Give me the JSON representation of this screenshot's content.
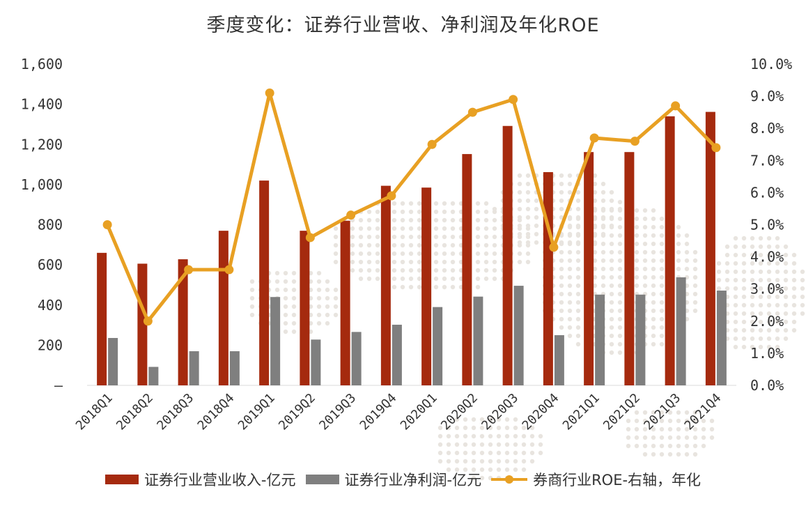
{
  "title": "季度变化：证券行业营收、净利润及年化ROE",
  "colors": {
    "revenue": "#A52A0E",
    "profit": "#7F7F7F",
    "roe": "#E8A023",
    "watermark": "#E8E4DF"
  },
  "legend": {
    "revenue": "证券行业营业收入-亿元",
    "profit": "证券行业净利润-亿元",
    "roe": "券商行业ROE-右轴，年化"
  },
  "chart_data": {
    "type": "bar",
    "categories": [
      "2018Q1",
      "2018Q2",
      "2018Q3",
      "2018Q4",
      "2019Q1",
      "2019Q2",
      "2019Q3",
      "2019Q4",
      "2020Q1",
      "2020Q2",
      "2020Q3",
      "2020Q4",
      "2021Q1",
      "2021Q2",
      "2021Q3",
      "2021Q4"
    ],
    "series": [
      {
        "name": "证券行业营业收入-亿元",
        "type": "bar",
        "axis": "left",
        "values": [
          660,
          606,
          628,
          770,
          1020,
          770,
          820,
          994,
          985,
          1152,
          1292,
          1062,
          1162,
          1162,
          1340,
          1362
        ]
      },
      {
        "name": "证券行业净利润-亿元",
        "type": "bar",
        "axis": "left",
        "values": [
          236,
          92,
          170,
          170,
          440,
          228,
          266,
          302,
          390,
          442,
          496,
          250,
          452,
          452,
          538,
          472
        ]
      },
      {
        "name": "券商行业ROE-右轴，年化",
        "type": "line",
        "axis": "right",
        "values": [
          5.0,
          2.0,
          3.6,
          3.6,
          9.1,
          4.6,
          5.3,
          5.9,
          7.5,
          8.5,
          8.9,
          4.3,
          7.7,
          7.6,
          8.7,
          7.4
        ]
      }
    ],
    "y_left": {
      "ylim": [
        0,
        1600
      ],
      "ticks": [
        "–",
        "200",
        "400",
        "600",
        "800",
        "1,000",
        "1,200",
        "1,400",
        "1,600"
      ]
    },
    "y_right": {
      "ylim": [
        0,
        10
      ],
      "ticks": [
        "0.0%",
        "1.0%",
        "2.0%",
        "3.0%",
        "4.0%",
        "5.0%",
        "6.0%",
        "7.0%",
        "8.0%",
        "9.0%",
        "10.0%"
      ]
    },
    "legend_position": "bottom",
    "grid": false
  }
}
